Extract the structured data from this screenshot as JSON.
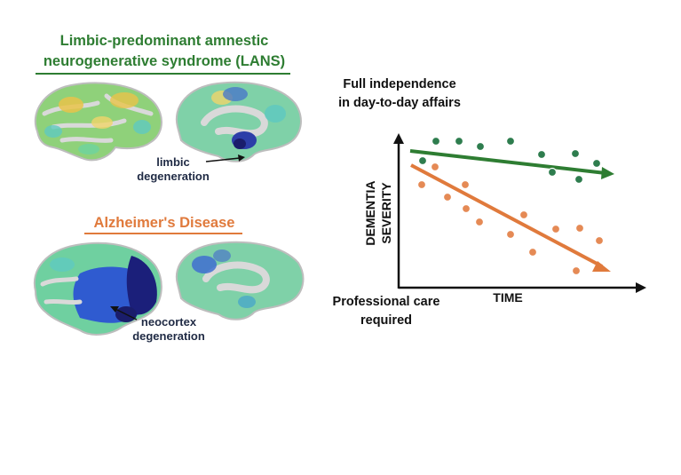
{
  "lans": {
    "title_line1": "Limbic-predominant amnestic",
    "title_line2": "neurogenerative syndrome (LANS)",
    "annotation_line1": "limbic",
    "annotation_line2": "degeneration"
  },
  "ad": {
    "title": "Alzheimer's Disease",
    "annotation_line1": "neocortex",
    "annotation_line2": "degeneration"
  },
  "graph": {
    "top_label_line1": "Full independence",
    "top_label_line2": "in day-to-day affairs",
    "bottom_label_line1": "Professional care",
    "bottom_label_line2": "required",
    "y_axis_line1": "DEMENTIA",
    "y_axis_line2": "SEVERITY",
    "x_axis": "TIME"
  },
  "colors": {
    "lans_green": "#2e7d32",
    "ad_orange": "#e07a3c",
    "dot_green": "#2e7d4e",
    "dot_orange": "#e58a55"
  }
}
